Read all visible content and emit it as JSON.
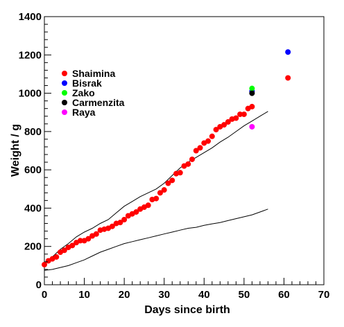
{
  "chart_data": {
    "type": "scatter",
    "title": "",
    "xlabel": "Days since birth",
    "ylabel": "Weight / g",
    "xlim": [
      0,
      70
    ],
    "ylim": [
      0,
      1400
    ],
    "xticks": [
      0,
      10,
      20,
      30,
      40,
      50,
      60,
      70
    ],
    "yticks": [
      0,
      200,
      400,
      600,
      800,
      1000,
      1200,
      1400
    ],
    "grid": false,
    "legend_position": "upper-left",
    "series": [
      {
        "name": "Shaimina",
        "color": "#ff0000",
        "x": [
          0,
          1,
          2,
          3,
          4,
          5,
          6,
          7,
          8,
          9,
          10,
          11,
          12,
          13,
          14,
          15,
          16,
          17,
          18,
          19,
          20,
          21,
          22,
          23,
          24,
          25,
          26,
          27,
          28,
          29,
          30,
          31,
          32,
          33,
          34,
          35,
          36,
          37,
          38,
          39,
          40,
          41,
          42,
          43,
          44,
          45,
          46,
          47,
          48,
          49,
          50,
          51,
          52,
          61
        ],
        "y": [
          105,
          125,
          135,
          145,
          170,
          180,
          195,
          205,
          220,
          230,
          230,
          240,
          255,
          265,
          285,
          290,
          295,
          305,
          320,
          325,
          340,
          360,
          370,
          380,
          395,
          405,
          415,
          445,
          450,
          480,
          495,
          530,
          545,
          580,
          585,
          620,
          630,
          655,
          700,
          715,
          740,
          750,
          775,
          810,
          825,
          835,
          850,
          865,
          870,
          890,
          890,
          920,
          930,
          1080
        ]
      },
      {
        "name": "Bisrak",
        "color": "#0000ff",
        "x": [
          52,
          61
        ],
        "y": [
          1010,
          1215
        ]
      },
      {
        "name": "Zako",
        "color": "#00ff00",
        "x": [
          52
        ],
        "y": [
          1025
        ]
      },
      {
        "name": "Carmenzita",
        "color": "#000000",
        "x": [
          52
        ],
        "y": [
          1000
        ]
      },
      {
        "name": "Raya",
        "color": "#ff00ff",
        "x": [
          52
        ],
        "y": [
          825
        ]
      }
    ],
    "reference_lines": [
      {
        "color": "#000000",
        "x": [
          0,
          2,
          4,
          6,
          8,
          10,
          12,
          14,
          16,
          18,
          20,
          22,
          24,
          26,
          28,
          30,
          32,
          34,
          36,
          38,
          40,
          42,
          44,
          46,
          48,
          50,
          52,
          54,
          56
        ],
        "y": [
          110,
          145,
          185,
          215,
          250,
          275,
          295,
          320,
          340,
          375,
          410,
          435,
          460,
          480,
          500,
          530,
          570,
          610,
          640,
          665,
          690,
          715,
          745,
          770,
          800,
          830,
          855,
          880,
          905
        ]
      },
      {
        "color": "#000000",
        "x": [
          0,
          2,
          4,
          6,
          8,
          10,
          12,
          14,
          16,
          18,
          20,
          22,
          24,
          26,
          28,
          30,
          32,
          34,
          36,
          38,
          40,
          42,
          44,
          46,
          48,
          50,
          52,
          54,
          56
        ],
        "y": [
          75,
          80,
          90,
          100,
          115,
          130,
          150,
          170,
          185,
          200,
          215,
          225,
          235,
          245,
          255,
          265,
          275,
          285,
          295,
          300,
          310,
          318,
          325,
          335,
          345,
          355,
          365,
          380,
          395
        ]
      }
    ]
  }
}
